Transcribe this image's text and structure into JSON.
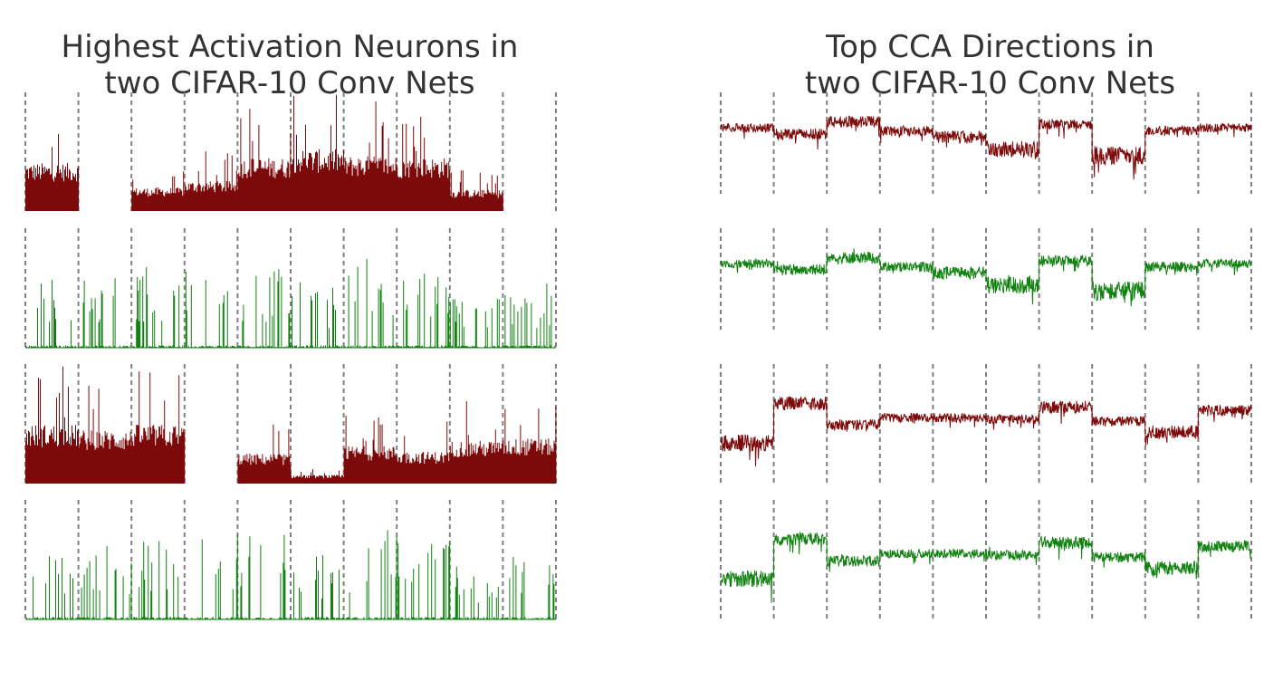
{
  "colors": {
    "red": "#7d0a0a",
    "green": "#118211",
    "divider": "#808080"
  },
  "chart_data": [
    {
      "type": "bar",
      "title": [
        "Highest Activation Neurons in",
        "two CIFAR-10 Conv Nets"
      ],
      "segments": 10,
      "grid": "dashed vertical separators between segments",
      "series": [
        {
          "color": "red",
          "levels": [
            0.45,
            0,
            0.22,
            0.28,
            0.5,
            0.58,
            0.52,
            0.5,
            0.2,
            0
          ]
        },
        {
          "color": "green",
          "levels": [
            0.6,
            0.62,
            0.7,
            0.72,
            0.72,
            0.55,
            0.75,
            0.68,
            0.45,
            0.55
          ]
        },
        {
          "color": "red",
          "levels": [
            0.55,
            0.5,
            0.55,
            0,
            0.28,
            0.08,
            0.35,
            0.3,
            0.4,
            0.42
          ]
        },
        {
          "color": "green",
          "levels": [
            0.6,
            0.62,
            0.7,
            0.72,
            0.72,
            0.55,
            0.75,
            0.68,
            0.45,
            0.55
          ]
        }
      ]
    },
    {
      "type": "line",
      "title": [
        "Top CCA Directions in",
        "two CIFAR-10 Conv Nets"
      ],
      "segments": 10,
      "grid": "dashed vertical separators between segments",
      "series": [
        {
          "color": "red",
          "levels": [
            0.0,
            -0.1,
            0.1,
            -0.05,
            -0.15,
            -0.35,
            0.05,
            -0.45,
            -0.05,
            0.0
          ]
        },
        {
          "color": "green",
          "levels": [
            0.0,
            -0.1,
            0.1,
            -0.05,
            -0.15,
            -0.35,
            0.05,
            -0.45,
            -0.05,
            0.0
          ]
        },
        {
          "color": "red",
          "levels": [
            -0.35,
            0.2,
            -0.1,
            0.0,
            0.0,
            -0.02,
            0.15,
            -0.05,
            -0.2,
            0.1
          ]
        },
        {
          "color": "green",
          "levels": [
            -0.35,
            0.2,
            -0.1,
            0.0,
            0.0,
            -0.02,
            0.15,
            -0.05,
            -0.2,
            0.1
          ]
        }
      ]
    }
  ]
}
